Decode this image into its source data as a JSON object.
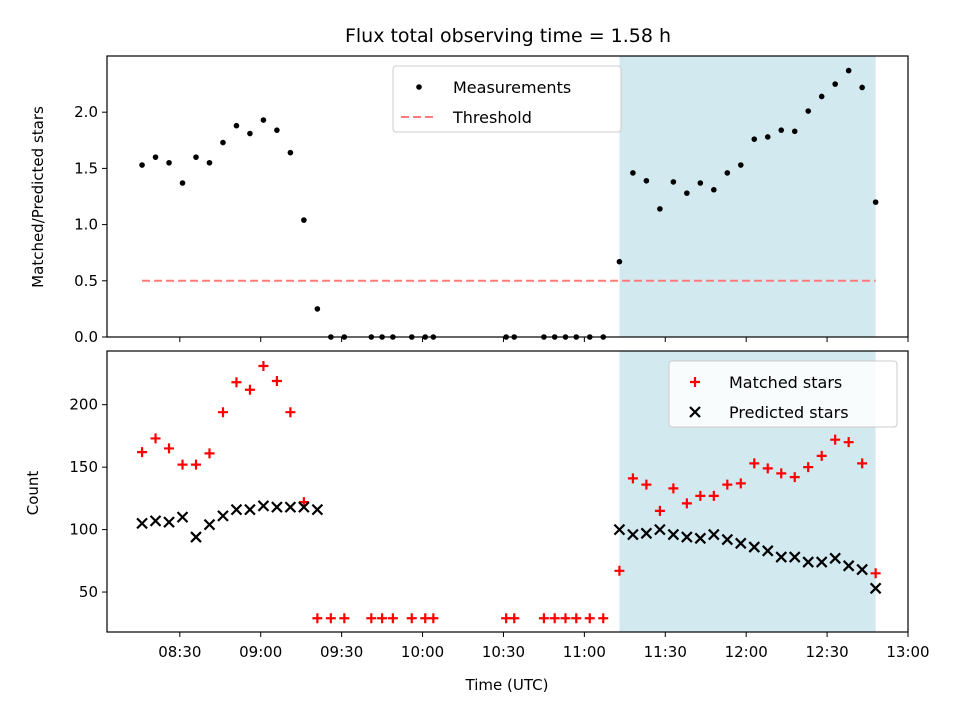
{
  "chart_data": [
    {
      "type": "scatter",
      "title": "Flux total observing time = 1.58 h",
      "xlabel": "",
      "ylabel": "Matched/Predicted stars",
      "xlim": [
        "08:03",
        "13:00"
      ],
      "ylim": [
        0,
        2.5
      ],
      "yticks": [
        0.0,
        0.5,
        1.0,
        1.5,
        2.0
      ],
      "ytick_labels": [
        "0.0",
        "0.5",
        "1.0",
        "1.5",
        "2.0"
      ],
      "shaded_region": {
        "x_start": "11:13",
        "x_end": "12:48",
        "color": "#d3e9f0"
      },
      "legend_position": "top-center",
      "series": [
        {
          "name": "Measurements",
          "marker": "dot",
          "color": "#000000",
          "points": [
            [
              "08:16",
              1.53
            ],
            [
              "08:21",
              1.6
            ],
            [
              "08:26",
              1.55
            ],
            [
              "08:31",
              1.37
            ],
            [
              "08:36",
              1.6
            ],
            [
              "08:41",
              1.55
            ],
            [
              "08:46",
              1.73
            ],
            [
              "08:51",
              1.88
            ],
            [
              "08:56",
              1.81
            ],
            [
              "09:01",
              1.93
            ],
            [
              "09:06",
              1.84
            ],
            [
              "09:11",
              1.64
            ],
            [
              "09:16",
              1.04
            ],
            [
              "09:21",
              0.25
            ],
            [
              "09:26",
              0.0
            ],
            [
              "09:31",
              0.0
            ],
            [
              "09:41",
              0.0
            ],
            [
              "09:45",
              0.0
            ],
            [
              "09:49",
              0.0
            ],
            [
              "09:56",
              0.0
            ],
            [
              "10:01",
              0.0
            ],
            [
              "10:04",
              0.0
            ],
            [
              "10:31",
              0.0
            ],
            [
              "10:34",
              0.0
            ],
            [
              "10:45",
              0.0
            ],
            [
              "10:49",
              0.0
            ],
            [
              "10:53",
              0.0
            ],
            [
              "10:57",
              0.0
            ],
            [
              "11:02",
              0.0
            ],
            [
              "11:07",
              0.0
            ],
            [
              "11:13",
              0.67
            ],
            [
              "11:18",
              1.46
            ],
            [
              "11:23",
              1.39
            ],
            [
              "11:28",
              1.14
            ],
            [
              "11:33",
              1.38
            ],
            [
              "11:38",
              1.28
            ],
            [
              "11:43",
              1.37
            ],
            [
              "11:48",
              1.31
            ],
            [
              "11:53",
              1.46
            ],
            [
              "11:58",
              1.53
            ],
            [
              "12:03",
              1.76
            ],
            [
              "12:08",
              1.78
            ],
            [
              "12:13",
              1.84
            ],
            [
              "12:18",
              1.83
            ],
            [
              "12:23",
              2.01
            ],
            [
              "12:28",
              2.14
            ],
            [
              "12:33",
              2.25
            ],
            [
              "12:38",
              2.37
            ],
            [
              "12:43",
              2.22
            ],
            [
              "12:48",
              1.2
            ]
          ]
        },
        {
          "name": "Threshold",
          "marker": "dashed-line",
          "color": "#ff7a7a",
          "points": [
            [
              "08:16",
              0.5
            ],
            [
              "12:48",
              0.5
            ]
          ]
        }
      ]
    },
    {
      "type": "scatter",
      "title": "",
      "xlabel": "Time (UTC)",
      "ylabel": "Count",
      "xlim": [
        "08:03",
        "13:00"
      ],
      "ylim": [
        18,
        243
      ],
      "yticks": [
        50,
        100,
        150,
        200
      ],
      "ytick_labels": [
        "50",
        "100",
        "150",
        "200"
      ],
      "xticks": [
        "08:30",
        "09:00",
        "09:30",
        "10:00",
        "10:30",
        "11:00",
        "11:30",
        "12:00",
        "12:30",
        "13:00"
      ],
      "shaded_region": {
        "x_start": "11:13",
        "x_end": "12:48",
        "color": "#d3e9f0"
      },
      "legend_position": "top-right",
      "series": [
        {
          "name": "Matched stars",
          "marker": "plus",
          "color": "#ff0000",
          "points": [
            [
              "08:16",
              162
            ],
            [
              "08:21",
              173
            ],
            [
              "08:26",
              165
            ],
            [
              "08:31",
              152
            ],
            [
              "08:36",
              152
            ],
            [
              "08:41",
              161
            ],
            [
              "08:46",
              194
            ],
            [
              "08:51",
              218
            ],
            [
              "08:56",
              212
            ],
            [
              "09:01",
              231
            ],
            [
              "09:06",
              219
            ],
            [
              "09:11",
              194
            ],
            [
              "09:16",
              122
            ],
            [
              "09:21",
              29
            ],
            [
              "09:26",
              29
            ],
            [
              "09:31",
              29
            ],
            [
              "09:41",
              29
            ],
            [
              "09:45",
              29
            ],
            [
              "09:49",
              29
            ],
            [
              "09:56",
              29
            ],
            [
              "10:01",
              29
            ],
            [
              "10:04",
              29
            ],
            [
              "10:31",
              29
            ],
            [
              "10:34",
              29
            ],
            [
              "10:45",
              29
            ],
            [
              "10:49",
              29
            ],
            [
              "10:53",
              29
            ],
            [
              "10:57",
              29
            ],
            [
              "11:02",
              29
            ],
            [
              "11:07",
              29
            ],
            [
              "11:13",
              67
            ],
            [
              "11:18",
              141
            ],
            [
              "11:23",
              136
            ],
            [
              "11:28",
              115
            ],
            [
              "11:33",
              133
            ],
            [
              "11:38",
              121
            ],
            [
              "11:43",
              127
            ],
            [
              "11:48",
              127
            ],
            [
              "11:53",
              136
            ],
            [
              "11:58",
              137
            ],
            [
              "12:03",
              153
            ],
            [
              "12:08",
              149
            ],
            [
              "12:13",
              145
            ],
            [
              "12:18",
              142
            ],
            [
              "12:23",
              150
            ],
            [
              "12:28",
              159
            ],
            [
              "12:33",
              172
            ],
            [
              "12:38",
              170
            ],
            [
              "12:43",
              153
            ],
            [
              "12:48",
              65
            ]
          ]
        },
        {
          "name": "Predicted stars",
          "marker": "x",
          "color": "#000000",
          "points": [
            [
              "08:16",
              105
            ],
            [
              "08:21",
              107
            ],
            [
              "08:26",
              106
            ],
            [
              "08:31",
              110
            ],
            [
              "08:36",
              94
            ],
            [
              "08:41",
              104
            ],
            [
              "08:46",
              111
            ],
            [
              "08:51",
              116
            ],
            [
              "08:56",
              116
            ],
            [
              "09:01",
              119
            ],
            [
              "09:06",
              118
            ],
            [
              "09:11",
              118
            ],
            [
              "09:16",
              118
            ],
            [
              "09:21",
              116
            ],
            [
              "11:13",
              100
            ],
            [
              "11:18",
              96
            ],
            [
              "11:23",
              97
            ],
            [
              "11:28",
              100
            ],
            [
              "11:33",
              96
            ],
            [
              "11:38",
              94
            ],
            [
              "11:43",
              93
            ],
            [
              "11:48",
              96
            ],
            [
              "11:53",
              92
            ],
            [
              "11:58",
              89
            ],
            [
              "12:03",
              86
            ],
            [
              "12:08",
              83
            ],
            [
              "12:13",
              78
            ],
            [
              "12:18",
              78
            ],
            [
              "12:23",
              74
            ],
            [
              "12:28",
              74
            ],
            [
              "12:33",
              77
            ],
            [
              "12:38",
              71
            ],
            [
              "12:43",
              68
            ],
            [
              "12:48",
              53
            ]
          ]
        }
      ]
    }
  ]
}
